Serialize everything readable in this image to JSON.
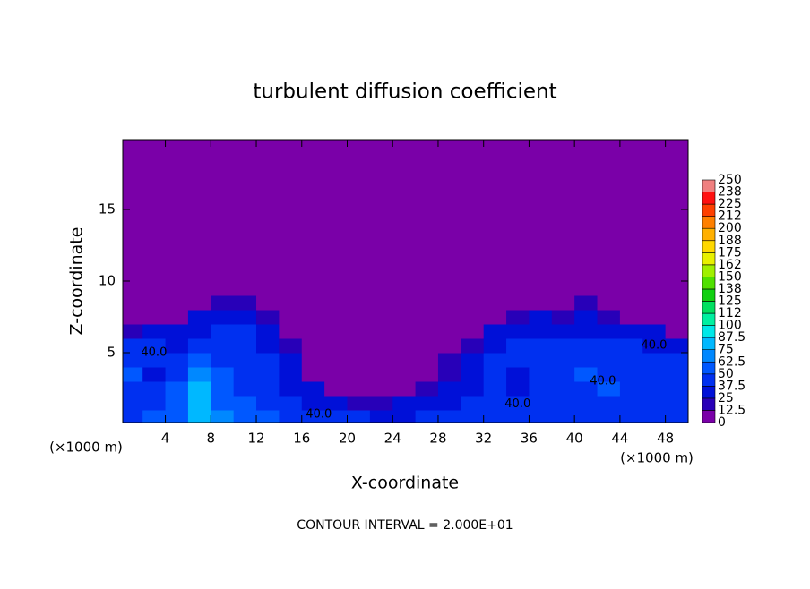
{
  "chart_data": {
    "type": "heatmap",
    "title": "turbulent diffusion coefficient",
    "xlabel": "X-coordinate",
    "ylabel": "Z-coordinate",
    "unit_labels": [
      "(×1000 m)",
      "(×1000 m)"
    ],
    "footer": "CONTOUR INTERVAL = 2.000E+01",
    "xlim": [
      0.25,
      50
    ],
    "ylim": [
      0.125,
      19.875
    ],
    "xticks": [
      4,
      8,
      12,
      16,
      20,
      24,
      28,
      32,
      36,
      40,
      44,
      48
    ],
    "yticks": [
      5,
      10,
      15
    ],
    "x": [
      1,
      3,
      5,
      7,
      9,
      11,
      13,
      15,
      17,
      19,
      21,
      23,
      25,
      27,
      29,
      31,
      33,
      35,
      37,
      39,
      41,
      43,
      45,
      47,
      49
    ],
    "z": [
      0.5,
      1.5,
      2.5,
      3.5,
      4.5,
      5.5,
      6.5,
      7.5,
      8.5,
      9.5
    ],
    "values": [
      [
        45,
        50,
        55,
        75,
        65,
        55,
        50,
        45,
        40,
        40,
        38,
        35,
        35,
        38,
        40,
        42,
        45,
        45,
        40,
        40,
        42,
        45,
        45,
        40,
        40
      ],
      [
        40,
        45,
        50,
        80,
        60,
        50,
        45,
        40,
        35,
        25,
        20,
        15,
        25,
        30,
        35,
        40,
        45,
        40,
        45,
        40,
        45,
        45,
        40,
        40,
        45
      ],
      [
        45,
        40,
        50,
        75,
        55,
        45,
        40,
        35,
        25,
        10,
        5,
        5,
        10,
        20,
        30,
        35,
        40,
        35,
        45,
        40,
        45,
        50,
        40,
        45,
        40
      ],
      [
        50,
        35,
        45,
        65,
        50,
        45,
        40,
        30,
        10,
        0,
        0,
        0,
        5,
        10,
        20,
        35,
        40,
        35,
        40,
        45,
        50,
        45,
        40,
        45,
        45
      ],
      [
        45,
        40,
        40,
        55,
        45,
        45,
        40,
        25,
        5,
        0,
        0,
        0,
        0,
        5,
        15,
        30,
        40,
        40,
        40,
        45,
        40,
        45,
        45,
        40,
        40
      ],
      [
        40,
        45,
        35,
        45,
        45,
        40,
        35,
        15,
        0,
        0,
        0,
        0,
        0,
        0,
        5,
        20,
        35,
        40,
        40,
        40,
        40,
        40,
        40,
        35,
        30
      ],
      [
        20,
        30,
        30,
        35,
        40,
        40,
        30,
        5,
        0,
        0,
        0,
        0,
        0,
        0,
        0,
        5,
        25,
        35,
        35,
        35,
        35,
        35,
        35,
        25,
        10
      ],
      [
        0,
        5,
        10,
        25,
        35,
        35,
        20,
        0,
        0,
        0,
        0,
        0,
        0,
        0,
        0,
        0,
        10,
        20,
        25,
        20,
        25,
        20,
        5,
        0,
        0
      ],
      [
        0,
        0,
        0,
        10,
        20,
        15,
        5,
        0,
        0,
        0,
        0,
        0,
        0,
        0,
        0,
        0,
        0,
        5,
        10,
        5,
        15,
        5,
        0,
        0,
        0
      ],
      [
        0,
        0,
        0,
        0,
        0,
        0,
        0,
        0,
        0,
        0,
        0,
        0,
        0,
        0,
        0,
        0,
        0,
        0,
        0,
        0,
        0,
        0,
        0,
        0,
        0
      ]
    ],
    "annotations": [
      {
        "text": "40.0",
        "x": 3,
        "z": 5
      },
      {
        "text": "40.0",
        "x": 17.5,
        "z": 0.7
      },
      {
        "text": "40.0",
        "x": 35,
        "z": 1.4
      },
      {
        "text": "40.0",
        "x": 42.5,
        "z": 3
      },
      {
        "text": "40.0",
        "x": 47,
        "z": 5.5
      }
    ],
    "colorbar": {
      "ticks": [
        0,
        12.5,
        25,
        37.5,
        50,
        62.5,
        75,
        87.5,
        100,
        {
          "value": 112.5,
          "label": "112"
        },
        125,
        {
          "value": 137.5,
          "label": "138"
        },
        150,
        {
          "value": 162.5,
          "label": "162"
        },
        175,
        {
          "value": 187.5,
          "label": "188"
        },
        200,
        {
          "value": 212.5,
          "label": "212"
        },
        225,
        {
          "value": 237.5,
          "label": "238"
        },
        250
      ],
      "colors": [
        "#7a00a8",
        "#2800b8",
        "#0010d8",
        "#0030f0",
        "#0058ff",
        "#0088ff",
        "#00b8ff",
        "#00e8e8",
        "#00f0a0",
        "#00e060",
        "#10d010",
        "#50e000",
        "#a0f000",
        "#e8f000",
        "#ffd800",
        "#ffb000",
        "#ff8000",
        "#ff4000",
        "#ff1010",
        "#f08080"
      ]
    }
  }
}
